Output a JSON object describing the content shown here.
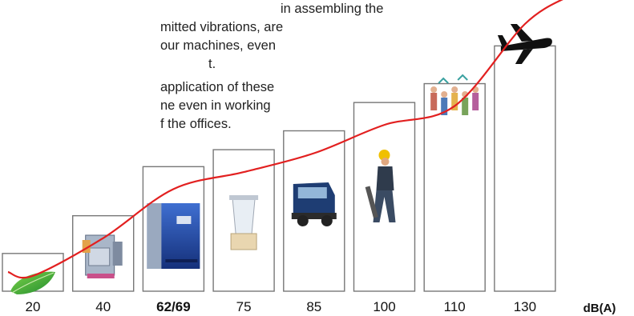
{
  "intro_text": {
    "paragraph_1": [
      "in assembling the",
      "mitted vibrations, are",
      "our machines, even",
      "t."
    ],
    "paragraph_2": [
      "application of these",
      "ne even in working",
      "f the offices."
    ]
  },
  "chart_data": {
    "type": "bar",
    "categories": [
      "20",
      "40",
      "62/69",
      "75",
      "85",
      "100",
      "110",
      "130"
    ],
    "values": [
      20,
      40,
      66,
      75,
      85,
      100,
      110,
      130
    ],
    "highlight_category": "62/69",
    "unit_label": "dB(A)",
    "title": "",
    "xlabel": "",
    "ylabel": "",
    "ylim": [
      0,
      145
    ],
    "grid": false,
    "legend": "none",
    "trend_line": true,
    "item_icons": [
      "leaf-icon",
      "dryer-icon",
      "compressor-icon",
      "blender-icon",
      "truck-icon",
      "jackhammer-worker-icon",
      "crowd-icon",
      "airplane-icon"
    ],
    "colors": {
      "bar_fill": "#ffffff",
      "bar_stroke": "#777777",
      "curve": "#e22020",
      "axis_text": "#111111"
    }
  }
}
